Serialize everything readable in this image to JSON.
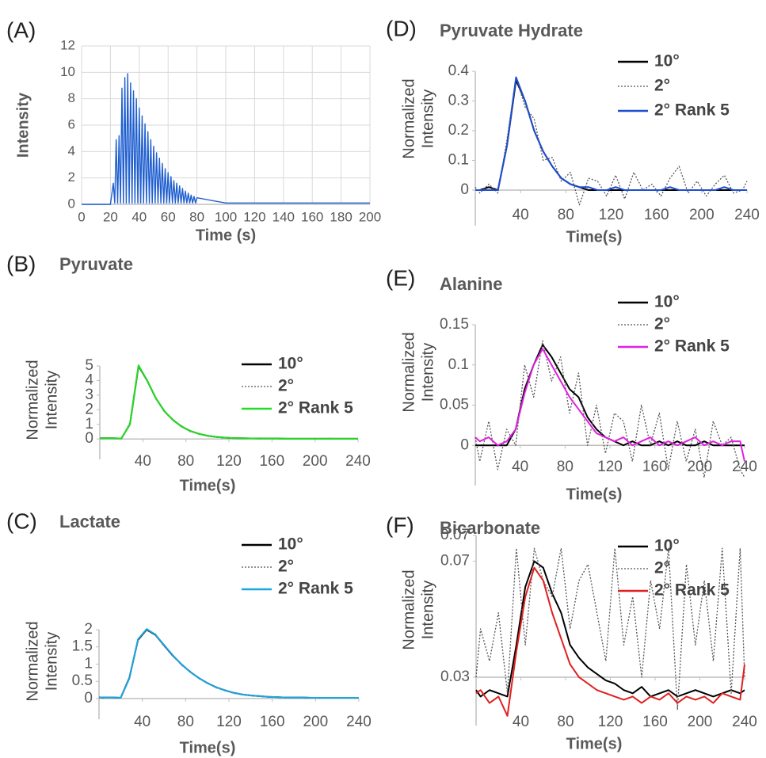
{
  "chart_data": [
    {
      "type": "line",
      "panel_label": "(A)",
      "xlabel": "Time (s)",
      "ylabel": "Intensity",
      "grid": true,
      "xlim": [
        0,
        200
      ],
      "xticks": [
        0,
        20,
        40,
        60,
        80,
        100,
        120,
        140,
        160,
        180,
        200
      ],
      "ylim": [
        0,
        12
      ],
      "yticks": [
        0,
        2,
        4,
        6,
        8,
        10,
        12
      ],
      "x": [
        0,
        20,
        22,
        23,
        24,
        25,
        26,
        27,
        28,
        29,
        30,
        31,
        32,
        33,
        34,
        35,
        36,
        37,
        38,
        39,
        40,
        41,
        42,
        43,
        44,
        45,
        46,
        47,
        48,
        49,
        50,
        51,
        52,
        53,
        54,
        55,
        56,
        57,
        58,
        59,
        60,
        61,
        62,
        63,
        64,
        65,
        66,
        67,
        68,
        69,
        70,
        71,
        72,
        73,
        74,
        75,
        76,
        77,
        78,
        79,
        80,
        100,
        200
      ],
      "series": [
        {
          "color": "#1f5fd0",
          "values": [
            0,
            0,
            1.6,
            0.1,
            4.9,
            0.1,
            5.2,
            0.1,
            8.8,
            0.1,
            9.6,
            0.1,
            9.9,
            0.1,
            9.2,
            0.1,
            8.6,
            0.1,
            8.0,
            0.1,
            7.3,
            0.1,
            6.7,
            0.1,
            6.1,
            0.1,
            5.5,
            0.1,
            4.9,
            0.1,
            4.4,
            0.1,
            3.9,
            0.1,
            3.5,
            0.1,
            3.1,
            0.1,
            2.7,
            0.1,
            2.4,
            0.1,
            2.1,
            0.1,
            1.8,
            0.1,
            1.6,
            0.1,
            1.4,
            0.1,
            1.2,
            0.1,
            1.0,
            0.1,
            0.85,
            0.1,
            0.7,
            0.1,
            0.6,
            0.1,
            0.5,
            0.1,
            0.1
          ]
        }
      ]
    },
    {
      "type": "line",
      "panel_label": "(B)",
      "title": "Pyruvate",
      "xlabel": "Time(s)",
      "ylabel": [
        "Normalized",
        "Intensity"
      ],
      "grid": false,
      "legend": "upper right",
      "xlim": [
        0,
        240
      ],
      "xticks": [
        40,
        80,
        120,
        160,
        200,
        240
      ],
      "ylim": [
        -1.4,
        5
      ],
      "yticks": [
        0,
        1,
        2,
        3,
        4,
        5
      ],
      "x": [
        0,
        4,
        12,
        20,
        28,
        36,
        44,
        52,
        60,
        68,
        76,
        84,
        92,
        100,
        108,
        116,
        124,
        132,
        140,
        148,
        156,
        164,
        172,
        180,
        188,
        196,
        204,
        212,
        220,
        228,
        236,
        240
      ],
      "series": [
        {
          "name": "10°",
          "color": "#000000",
          "linestyle": "solid",
          "values": [
            0.05,
            0.05,
            0.05,
            0.03,
            1.0,
            5.0,
            4.0,
            2.8,
            1.9,
            1.3,
            0.85,
            0.55,
            0.35,
            0.22,
            0.14,
            0.09,
            0.06,
            0.05,
            0.04,
            0.03,
            0.03,
            0.03,
            0.02,
            0.02,
            0.02,
            0.02,
            0.02,
            0.02,
            0.02,
            0.02,
            0.02,
            0.02
          ]
        },
        {
          "name": "2°",
          "color": "#555555",
          "linestyle": "dotted",
          "values": [
            0.08,
            0.02,
            0.06,
            0.01,
            1.1,
            4.95,
            4.05,
            2.75,
            1.95,
            1.25,
            0.9,
            0.5,
            0.38,
            0.2,
            0.16,
            0.07,
            0.08,
            0.03,
            0.06,
            0.01,
            0.05,
            0.02,
            0.04,
            0.0,
            0.03,
            0.03,
            0.01,
            0.04,
            0.02,
            0.03,
            0.0,
            0.03
          ]
        },
        {
          "name": "2° Rank 5",
          "color": "#22dd22",
          "linestyle": "solid",
          "values": [
            0.05,
            0.04,
            0.05,
            0.04,
            1.0,
            5.05,
            4.0,
            2.8,
            1.9,
            1.3,
            0.85,
            0.55,
            0.35,
            0.22,
            0.14,
            0.09,
            0.06,
            0.05,
            0.04,
            0.03,
            0.03,
            0.03,
            0.02,
            0.02,
            0.02,
            0.02,
            0.02,
            0.02,
            0.02,
            0.02,
            0.02,
            0.02
          ]
        }
      ]
    },
    {
      "type": "line",
      "panel_label": "(C)",
      "title": "Lactate",
      "xlabel": "Time(s)",
      "ylabel": [
        "Normalized",
        "Intensity"
      ],
      "grid": false,
      "legend": "upper right",
      "xlim": [
        0,
        240
      ],
      "xticks": [
        40,
        80,
        120,
        160,
        200,
        240
      ],
      "ylim": [
        -0.6,
        2
      ],
      "yticks": [
        0,
        0.5,
        1,
        1.5,
        2
      ],
      "x": [
        0,
        4,
        12,
        20,
        28,
        36,
        44,
        52,
        60,
        68,
        76,
        84,
        92,
        100,
        108,
        116,
        124,
        132,
        140,
        148,
        156,
        164,
        172,
        180,
        188,
        196,
        204,
        212,
        220,
        228,
        236,
        240
      ],
      "series": [
        {
          "name": "10°",
          "color": "#000000",
          "linestyle": "solid",
          "values": [
            0.03,
            0.03,
            0.03,
            0.02,
            0.6,
            1.7,
            2.0,
            1.85,
            1.55,
            1.25,
            1.0,
            0.78,
            0.6,
            0.45,
            0.33,
            0.24,
            0.17,
            0.12,
            0.09,
            0.07,
            0.05,
            0.04,
            0.03,
            0.03,
            0.03,
            0.02,
            0.02,
            0.02,
            0.02,
            0.02,
            0.02,
            0.02
          ]
        },
        {
          "name": "2°",
          "color": "#555555",
          "linestyle": "dotted",
          "values": [
            0.05,
            0.01,
            0.04,
            0.03,
            0.62,
            1.72,
            1.98,
            1.88,
            1.52,
            1.28,
            0.97,
            0.8,
            0.58,
            0.47,
            0.31,
            0.26,
            0.15,
            0.13,
            0.08,
            0.08,
            0.04,
            0.05,
            0.02,
            0.04,
            0.02,
            0.03,
            0.01,
            0.03,
            0.02,
            0.03,
            0.01,
            0.02
          ]
        },
        {
          "name": "2° Rank 5",
          "color": "#1ba6e0",
          "linestyle": "solid",
          "values": [
            0.03,
            0.03,
            0.03,
            0.02,
            0.58,
            1.72,
            2.02,
            1.86,
            1.56,
            1.26,
            1.0,
            0.78,
            0.6,
            0.45,
            0.33,
            0.24,
            0.17,
            0.12,
            0.09,
            0.07,
            0.05,
            0.04,
            0.03,
            0.03,
            0.03,
            0.02,
            0.02,
            0.02,
            0.02,
            0.02,
            0.02,
            0.02
          ]
        }
      ]
    },
    {
      "type": "line",
      "panel_label": "(D)",
      "title": "Pyruvate Hydrate",
      "xlabel": "Time(s)",
      "ylabel": [
        "Normalized",
        "Intensity"
      ],
      "grid": false,
      "legend": "upper right",
      "xlim": [
        0,
        240
      ],
      "xticks": [
        40,
        80,
        120,
        160,
        200,
        240
      ],
      "ylim": [
        -0.12,
        0.4
      ],
      "yticks": [
        0,
        0.1,
        0.2,
        0.3,
        0.4
      ],
      "x": [
        0,
        4,
        12,
        20,
        28,
        36,
        44,
        52,
        60,
        68,
        76,
        84,
        92,
        100,
        108,
        116,
        124,
        132,
        140,
        148,
        156,
        164,
        172,
        180,
        188,
        196,
        204,
        212,
        220,
        228,
        236,
        240
      ],
      "series": [
        {
          "name": "10°",
          "color": "#000000",
          "linestyle": "solid",
          "values": [
            0.0,
            0.0,
            0.01,
            0.0,
            0.15,
            0.37,
            0.3,
            0.2,
            0.13,
            0.08,
            0.04,
            0.02,
            0.01,
            0.0,
            0.0,
            0.0,
            0.0,
            0.0,
            0.0,
            0.0,
            0.0,
            0.0,
            0.0,
            0.0,
            0.0,
            0.0,
            0.0,
            0.0,
            0.0,
            0.0,
            0.0,
            0.0
          ]
        },
        {
          "name": "2°",
          "color": "#555555",
          "linestyle": "dotted",
          "values": [
            0.01,
            -0.01,
            0.02,
            -0.01,
            0.17,
            0.38,
            0.28,
            0.24,
            0.1,
            0.11,
            0.03,
            0.06,
            -0.05,
            0.04,
            0.03,
            -0.02,
            0.05,
            -0.03,
            0.06,
            0.0,
            0.02,
            -0.02,
            0.04,
            0.08,
            -0.01,
            0.03,
            -0.02,
            0.02,
            0.05,
            -0.01,
            0.0,
            0.03
          ]
        },
        {
          "name": "2° Rank 5",
          "color": "#1f4fd0",
          "linestyle": "solid",
          "values": [
            0.0,
            0.0,
            0.0,
            0.0,
            0.15,
            0.38,
            0.3,
            0.2,
            0.13,
            0.08,
            0.04,
            0.02,
            0.01,
            0.01,
            0.0,
            0.0,
            0.01,
            0.0,
            0.0,
            0.0,
            0.0,
            0.0,
            0.01,
            0.0,
            0.0,
            0.0,
            0.0,
            0.0,
            0.01,
            0.0,
            0.0,
            0.0
          ]
        }
      ]
    },
    {
      "type": "line",
      "panel_label": "(E)",
      "title": "Alanine",
      "xlabel": "Time(s)",
      "ylabel": [
        "Normalized",
        "Intensity"
      ],
      "grid": false,
      "legend": "upper right",
      "xlim": [
        0,
        240
      ],
      "xticks": [
        40,
        80,
        120,
        160,
        200,
        240
      ],
      "ylim": [
        -0.05,
        0.15
      ],
      "yticks": [
        0,
        0.05,
        0.1,
        0.15
      ],
      "x": [
        0,
        4,
        12,
        20,
        28,
        36,
        44,
        52,
        60,
        68,
        76,
        84,
        92,
        100,
        108,
        116,
        124,
        132,
        140,
        148,
        156,
        164,
        172,
        180,
        188,
        196,
        204,
        212,
        220,
        228,
        236,
        240
      ],
      "series": [
        {
          "name": "10°",
          "color": "#000000",
          "linestyle": "solid",
          "values": [
            0.0,
            0.0,
            0.0,
            0.0,
            0.0,
            0.02,
            0.07,
            0.1,
            0.125,
            0.11,
            0.09,
            0.07,
            0.06,
            0.035,
            0.02,
            0.01,
            0.005,
            0.0,
            0.005,
            0.0,
            0.0,
            0.005,
            0.0,
            0.005,
            0.0,
            0.0,
            0.005,
            0.0,
            0.0,
            0.0,
            0.0,
            0.0
          ]
        },
        {
          "name": "2°",
          "color": "#555555",
          "linestyle": "dotted",
          "values": [
            0.01,
            -0.02,
            0.03,
            -0.03,
            0.02,
            0.0,
            0.1,
            0.06,
            0.13,
            0.08,
            0.11,
            0.04,
            0.09,
            0.0,
            0.05,
            -0.01,
            0.04,
            0.03,
            -0.02,
            0.05,
            0.0,
            0.04,
            -0.03,
            0.03,
            -0.02,
            0.02,
            -0.04,
            0.03,
            0.0,
            0.01,
            -0.03,
            -0.04
          ]
        },
        {
          "name": "2° Rank 5",
          "color": "#e020e0",
          "linestyle": "solid",
          "values": [
            0.01,
            0.005,
            0.01,
            0.0,
            0.005,
            0.02,
            0.065,
            0.1,
            0.12,
            0.1,
            0.08,
            0.06,
            0.045,
            0.03,
            0.015,
            0.01,
            0.005,
            0.01,
            0.0,
            0.005,
            0.01,
            0.0,
            0.005,
            0.0,
            0.005,
            0.01,
            0.0,
            0.005,
            0.0,
            0.005,
            0.005,
            -0.02
          ]
        }
      ]
    },
    {
      "type": "line",
      "panel_label": "(F)",
      "title": "Bicarbonate",
      "xlabel": "Time(s)",
      "ylabel": [
        "Normalized",
        "Intensity"
      ],
      "grid": false,
      "legend": "upper right",
      "xlim": [
        0,
        240
      ],
      "xticks": [
        40,
        80,
        120,
        160,
        200,
        240
      ],
      "ylim": [
        0.015,
        0.074
      ],
      "yticks": [
        0.03,
        {
          "value": 0.066,
          "label": "0.07"
        },
        {
          "value": 0.074,
          "label": "0.07"
        }
      ],
      "x": [
        0,
        4,
        12,
        20,
        28,
        36,
        44,
        52,
        60,
        68,
        76,
        84,
        92,
        100,
        108,
        116,
        124,
        132,
        140,
        148,
        156,
        164,
        172,
        180,
        188,
        196,
        204,
        212,
        220,
        228,
        236,
        240
      ],
      "series": [
        {
          "name": "10°",
          "color": "#000000",
          "linestyle": "solid",
          "values": [
            0.026,
            0.024,
            0.026,
            0.025,
            0.024,
            0.04,
            0.058,
            0.066,
            0.064,
            0.056,
            0.05,
            0.04,
            0.036,
            0.033,
            0.031,
            0.029,
            0.028,
            0.026,
            0.025,
            0.027,
            0.024,
            0.025,
            0.026,
            0.024,
            0.025,
            0.026,
            0.025,
            0.024,
            0.025,
            0.026,
            0.025,
            0.026
          ]
        },
        {
          "name": "2°",
          "color": "#555555",
          "linestyle": "dotted",
          "values": [
            0.03,
            0.045,
            0.035,
            0.05,
            0.025,
            0.07,
            0.04,
            0.07,
            0.06,
            0.055,
            0.07,
            0.045,
            0.06,
            0.065,
            0.05,
            0.035,
            0.07,
            0.04,
            0.055,
            0.03,
            0.06,
            0.045,
            0.07,
            0.02,
            0.065,
            0.04,
            0.06,
            0.035,
            0.07,
            0.025,
            0.07,
            0.03
          ]
        },
        {
          "name": "2° Rank 5",
          "color": "#e02020",
          "linestyle": "solid",
          "values": [
            0.025,
            0.026,
            0.022,
            0.024,
            0.018,
            0.038,
            0.055,
            0.064,
            0.06,
            0.05,
            0.042,
            0.034,
            0.03,
            0.028,
            0.026,
            0.025,
            0.024,
            0.023,
            0.024,
            0.022,
            0.024,
            0.023,
            0.025,
            0.022,
            0.024,
            0.023,
            0.024,
            0.022,
            0.025,
            0.024,
            0.023,
            0.034
          ]
        }
      ]
    }
  ]
}
